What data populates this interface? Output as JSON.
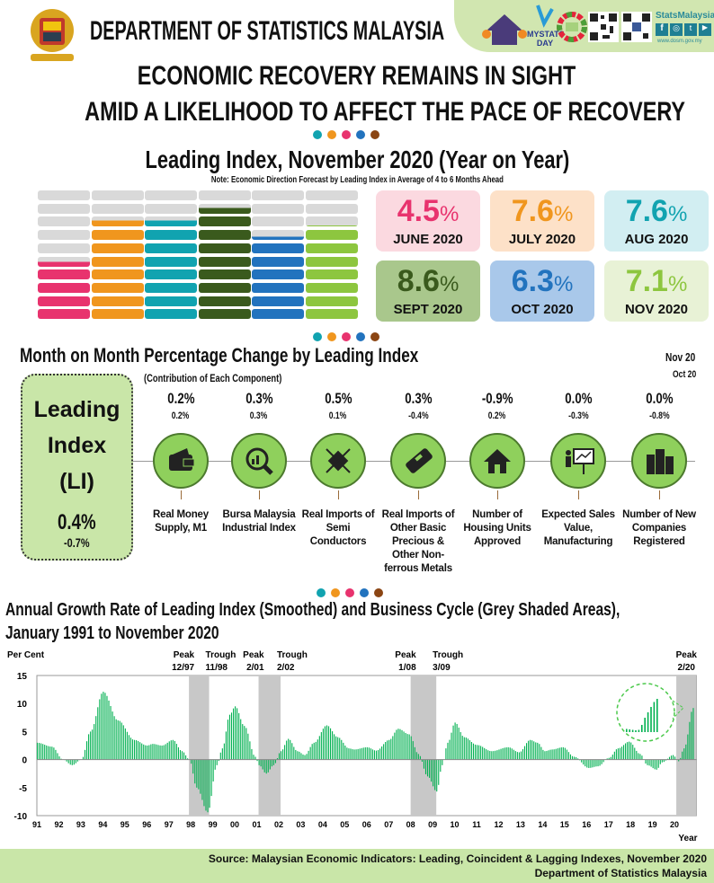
{
  "header": {
    "org": "DEPARTMENT OF STATISTICS MALAYSIA",
    "stats_brand": "StatsMalaysia",
    "website": "www.dosm.gov.my",
    "mystats": "MYSTATS DAY",
    "logos": [
      "coat-of-arms",
      "census-2020-logo",
      "mystats-day-logo",
      "sdg-wheel-logo",
      "qr-code",
      "qr-code-facebook",
      "social-icons"
    ]
  },
  "headline": {
    "line1": "ECONOMIC RECOVERY REMAINS IN SIGHT",
    "line2": "AMID A LIKELIHOOD TO AFFECT THE PACE OF RECOVERY"
  },
  "dot_colors": [
    "#11a3b0",
    "#f0961e",
    "#e8336e",
    "#2273be",
    "#8b4513"
  ],
  "yoy": {
    "title": "Leading Index, November 2020 (Year on Year)",
    "note": "Note: Economic Direction Forecast by Leading Index in Average of 4 to 6 Months Ahead",
    "gauge_max": 10,
    "items": [
      {
        "value": "4.5",
        "num": 4.5,
        "unit": "%",
        "month": "JUNE 2020",
        "color": "#e8336e",
        "bg": "#fbd9e0"
      },
      {
        "value": "7.6",
        "num": 7.6,
        "unit": "%",
        "month": "JULY 2020",
        "color": "#f0961e",
        "bg": "#fde1c8"
      },
      {
        "value": "7.6",
        "num": 7.6,
        "unit": "%",
        "month": "AUG 2020",
        "color": "#11a3b0",
        "bg": "#d2eef2"
      },
      {
        "value": "8.6",
        "num": 8.6,
        "unit": "%",
        "month": "SEPT 2020",
        "color": "#3a5a1d",
        "bg": "#a9c78c"
      },
      {
        "value": "6.3",
        "num": 6.3,
        "unit": "%",
        "month": "OCT 2020",
        "color": "#2273be",
        "bg": "#a9c8ea"
      },
      {
        "value": "7.1",
        "num": 7.1,
        "unit": "%",
        "month": "NOV 2020",
        "color": "#8dc63f",
        "bg": "#e8f2d6"
      }
    ]
  },
  "mom": {
    "title": "Month on Month Percentage Change by Leading Index",
    "subtitle": "(Contribution of Each Component)",
    "legend_current": "Nov 20",
    "legend_prev": "Oct 20",
    "li": {
      "line1": "Leading",
      "line2": "Index",
      "line3": "(LI)",
      "current": "0.4%",
      "previous": "-0.7%"
    },
    "components": [
      {
        "current": "0.2%",
        "previous": "0.2%",
        "label": "Real Money Supply, M1",
        "icon": "wallet-icon"
      },
      {
        "current": "0.3%",
        "previous": "0.3%",
        "label": "Bursa Malaysia Industrial Index",
        "icon": "magnifier-chart-icon"
      },
      {
        "current": "0.5%",
        "previous": "0.1%",
        "label": "Real Imports of Semi Conductors",
        "icon": "semiconductor-icon"
      },
      {
        "current": "0.3%",
        "previous": "-0.4%",
        "label": "Real Imports of Other Basic Precious & Other Non-ferrous Metals",
        "icon": "metal-bar-icon"
      },
      {
        "current": "-0.9%",
        "previous": "0.2%",
        "label": "Number of Housing Units Approved",
        "icon": "house-icon"
      },
      {
        "current": "0.0%",
        "previous": "-0.3%",
        "label": "Expected Sales Value, Manufacturing",
        "icon": "presentation-icon"
      },
      {
        "current": "0.0%",
        "previous": "-0.8%",
        "label": "Number of New Companies Registered",
        "icon": "buildings-icon"
      }
    ]
  },
  "chart_data": {
    "type": "bar",
    "title": "Annual Growth Rate of Leading Index (Smoothed) and Business Cycle (Grey Shaded Areas), January 1991 to November 2020",
    "title_line1": "Annual Growth Rate of Leading Index (Smoothed) and Business Cycle (Grey Shaded Areas),",
    "title_line2": "January 1991 to November 2020",
    "ylabel": "Per Cent",
    "xlabel": "Year",
    "ylim": [
      -10,
      15
    ],
    "yticks": [
      "15",
      "10",
      "5",
      "0",
      "-5",
      "-10"
    ],
    "xticks": [
      "91",
      "92",
      "93",
      "94",
      "95",
      "96",
      "97",
      "98",
      "99",
      "00",
      "01",
      "02",
      "03",
      "04",
      "05",
      "06",
      "07",
      "08",
      "09",
      "10",
      "11",
      "12",
      "13",
      "14",
      "15",
      "16",
      "17",
      "18",
      "19",
      "20"
    ],
    "bar_color": "#00b050",
    "shade_color": "#c8c8c8",
    "grid": false,
    "series_keypoints": [
      [
        "1991-01",
        3.0
      ],
      [
        "1991-09",
        2.3
      ],
      [
        "1992-03",
        0
      ],
      [
        "1992-08",
        -1.0
      ],
      [
        "1993-01",
        0
      ],
      [
        "1993-06",
        5
      ],
      [
        "1994-01",
        12.1
      ],
      [
        "1994-09",
        7
      ],
      [
        "1995-06",
        3.5
      ],
      [
        "1996-01",
        2.5
      ],
      [
        "1996-04",
        2.8
      ],
      [
        "1996-09",
        2.5
      ],
      [
        "1997-03",
        3.5
      ],
      [
        "1997-08",
        1.5
      ],
      [
        "1997-12",
        0
      ],
      [
        "1998-04",
        -5
      ],
      [
        "1998-10",
        -9.4
      ],
      [
        "1999-03",
        -1
      ],
      [
        "1999-06",
        2
      ],
      [
        "1999-10",
        8
      ],
      [
        "2000-01",
        9.5
      ],
      [
        "2000-06",
        6
      ],
      [
        "2000-12",
        0.5
      ],
      [
        "2001-02",
        -1
      ],
      [
        "2001-06",
        -2.5
      ],
      [
        "2001-10",
        -1
      ],
      [
        "2002-02",
        1.5
      ],
      [
        "2002-06",
        3.7
      ],
      [
        "2002-11",
        1.5
      ],
      [
        "2003-03",
        0.8
      ],
      [
        "2003-08",
        3
      ],
      [
        "2004-03",
        6.1
      ],
      [
        "2004-09",
        4
      ],
      [
        "2005-03",
        2
      ],
      [
        "2005-06",
        1.8
      ],
      [
        "2006-01",
        2.2
      ],
      [
        "2006-06",
        1.6
      ],
      [
        "2007-01",
        3.5
      ],
      [
        "2007-06",
        5.5
      ],
      [
        "2007-12",
        4.5
      ],
      [
        "2008-05",
        1
      ],
      [
        "2008-10",
        -3
      ],
      [
        "2009-03",
        -5.7
      ],
      [
        "2009-06",
        -1
      ],
      [
        "2009-09",
        3
      ],
      [
        "2010-01",
        6.6
      ],
      [
        "2010-06",
        4
      ],
      [
        "2011-01",
        2.6
      ],
      [
        "2011-09",
        1.5
      ],
      [
        "2012-06",
        2.2
      ],
      [
        "2012-12",
        1.3
      ],
      [
        "2013-06",
        3.5
      ],
      [
        "2013-10",
        3
      ],
      [
        "2014-02",
        1.5
      ],
      [
        "2014-06",
        1.8
      ],
      [
        "2014-12",
        2.2
      ],
      [
        "2015-06",
        0.5
      ],
      [
        "2016-02",
        -1.5
      ],
      [
        "2016-07",
        -1.2
      ],
      [
        "2017-01",
        0.3
      ],
      [
        "2017-06",
        2
      ],
      [
        "2017-12",
        3.2
      ],
      [
        "2018-06",
        1
      ],
      [
        "2018-10",
        -1
      ],
      [
        "2019-03",
        -1.8
      ],
      [
        "2019-06",
        -0.5
      ],
      [
        "2019-12",
        0.8
      ],
      [
        "2020-03",
        -0.3
      ],
      [
        "2020-06",
        2
      ],
      [
        "2020-11",
        9.2
      ]
    ],
    "cycles": [
      {
        "peak": "12/97",
        "trough": "11/98",
        "start": "1997-12",
        "end": "1998-11"
      },
      {
        "peak": "2/01",
        "trough": "2/02",
        "start": "2001-02",
        "end": "2002-02"
      },
      {
        "peak": "1/08",
        "trough": "3/09",
        "start": "2008-01",
        "end": "2009-03"
      },
      {
        "peak": "2/20",
        "trough": "",
        "start": "2020-02",
        "end": "2020-11"
      }
    ],
    "peak_label": "Peak",
    "trough_label": "Trough"
  },
  "footer": {
    "source": "Source:  Malaysian Economic Indicators: Leading, Coincident & Lagging Indexes, November 2020",
    "org": "Department of Statistics Malaysia"
  }
}
